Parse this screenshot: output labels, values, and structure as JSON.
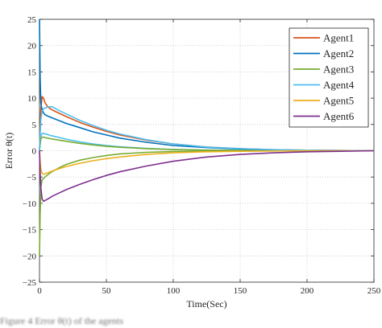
{
  "chart_data": {
    "type": "line",
    "xlabel": "Time(Sec)",
    "ylabel": "Error θ(t)",
    "xlim": [
      0,
      250
    ],
    "ylim": [
      -25,
      25
    ],
    "xticks": [
      0,
      50,
      100,
      150,
      200,
      250
    ],
    "yticks": [
      -25,
      -20,
      -15,
      -10,
      -5,
      0,
      5,
      10,
      15,
      20,
      25
    ],
    "grid": true,
    "legend_position": "top-right",
    "series": [
      {
        "name": "Agent1",
        "color": "#D95319",
        "x": [
          0,
          0.5,
          1,
          2,
          3,
          4,
          6,
          8,
          10,
          15,
          20,
          30,
          40,
          50,
          60,
          80,
          100,
          125,
          150,
          175,
          200,
          225,
          250
        ],
        "y": [
          0,
          4,
          8,
          10.3,
          10,
          9.2,
          8.4,
          8.0,
          7.7,
          7.1,
          6.5,
          5.4,
          4.5,
          3.7,
          3.0,
          2.0,
          1.3,
          0.7,
          0.4,
          0.2,
          0.1,
          0.05,
          0
        ]
      },
      {
        "name": "Agent2",
        "color": "#0072BD",
        "x": [
          0,
          0.5,
          1,
          2,
          3,
          4,
          6,
          8,
          10,
          15,
          20,
          30,
          40,
          50,
          60,
          80,
          100,
          125,
          150,
          175,
          200,
          225,
          250
        ],
        "y": [
          25,
          14,
          9,
          7.8,
          7.2,
          6.9,
          6.6,
          6.4,
          6.2,
          5.7,
          5.2,
          4.4,
          3.6,
          3.0,
          2.4,
          1.6,
          1.0,
          0.6,
          0.3,
          0.15,
          0.08,
          0.03,
          0
        ]
      },
      {
        "name": "Agent3",
        "color": "#77AC30",
        "x": [
          0,
          0.5,
          1,
          2,
          3,
          4,
          6,
          8,
          10,
          15,
          20,
          30,
          40,
          50,
          60,
          80,
          100,
          125,
          150,
          175,
          200,
          225,
          250
        ],
        "y": [
          -20,
          -12,
          -7,
          -5.5,
          -5.3,
          -5.0,
          -4.6,
          -4.2,
          -3.9,
          -3.2,
          -2.6,
          -1.8,
          -1.3,
          -0.9,
          -0.6,
          -0.3,
          -0.15,
          -0.08,
          -0.04,
          -0.02,
          -0.01,
          0,
          0
        ]
      },
      {
        "name": "Agent4",
        "color": "#4DBEEE",
        "x": [
          0,
          0.5,
          1,
          2,
          3,
          4,
          6,
          8,
          10,
          15,
          20,
          30,
          40,
          50,
          60,
          80,
          100,
          125,
          150,
          175,
          200,
          225,
          250
        ],
        "y": [
          0,
          3,
          6,
          7.5,
          8.0,
          8.1,
          8.3,
          8.4,
          8.3,
          7.6,
          7.0,
          5.8,
          4.8,
          3.9,
          3.2,
          2.1,
          1.3,
          0.7,
          0.4,
          0.2,
          0.1,
          0.05,
          0
        ]
      },
      {
        "name": "Agent5",
        "color": "#EDB120",
        "x": [
          0,
          0.5,
          1,
          2,
          3,
          4,
          6,
          8,
          10,
          15,
          20,
          30,
          40,
          50,
          60,
          80,
          100,
          125,
          150,
          175,
          200,
          225,
          250
        ],
        "y": [
          0,
          -2,
          -3.5,
          -4.3,
          -4.5,
          -4.4,
          -4.2,
          -4.0,
          -3.8,
          -3.4,
          -3.0,
          -2.4,
          -1.9,
          -1.5,
          -1.2,
          -0.7,
          -0.4,
          -0.2,
          -0.1,
          -0.05,
          -0.02,
          0,
          0
        ]
      },
      {
        "name": "Agent6",
        "color": "#7E2F8E",
        "x": [
          0,
          0.5,
          1,
          2,
          3,
          4,
          6,
          8,
          10,
          15,
          20,
          30,
          40,
          50,
          60,
          80,
          100,
          125,
          150,
          175,
          200,
          225,
          250
        ],
        "y": [
          0,
          -4,
          -7,
          -9.2,
          -9.6,
          -9.5,
          -9.2,
          -8.9,
          -8.6,
          -8.0,
          -7.4,
          -6.4,
          -5.5,
          -4.7,
          -4.0,
          -2.9,
          -2.0,
          -1.2,
          -0.7,
          -0.4,
          -0.2,
          -0.1,
          0
        ]
      }
    ],
    "extra_series": [
      {
        "color": "#4DBEEE",
        "x": [
          0,
          0.5,
          1,
          2,
          3,
          4,
          6,
          8,
          10,
          15,
          20,
          30,
          40,
          50,
          60,
          80,
          100,
          125,
          150,
          175,
          200,
          225,
          250
        ],
        "y": [
          0,
          1.5,
          2.8,
          3.3,
          3.3,
          3.2,
          3.1,
          2.9,
          2.8,
          2.5,
          2.2,
          1.7,
          1.3,
          1.0,
          0.75,
          0.45,
          0.25,
          0.12,
          0.06,
          0.03,
          0.01,
          0,
          0
        ]
      },
      {
        "color": "#77AC30",
        "x": [
          0,
          0.5,
          1,
          2,
          3,
          4,
          6,
          8,
          10,
          15,
          20,
          30,
          40,
          50,
          60,
          80,
          100,
          125,
          150,
          175,
          200,
          225,
          250
        ],
        "y": [
          0,
          1.2,
          2.2,
          2.6,
          2.6,
          2.5,
          2.4,
          2.3,
          2.2,
          2.0,
          1.8,
          1.4,
          1.1,
          0.85,
          0.65,
          0.4,
          0.22,
          0.1,
          0.05,
          0.02,
          0.01,
          0,
          0
        ]
      }
    ]
  },
  "caption": {
    "text": "Figure 4  Error θ(t) of the agents"
  }
}
